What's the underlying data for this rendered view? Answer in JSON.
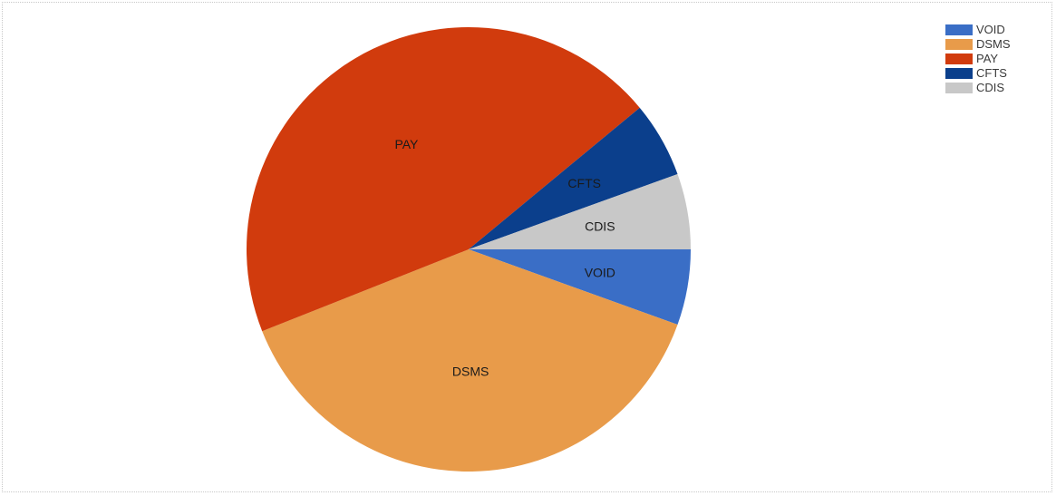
{
  "chart_data": {
    "type": "pie",
    "title": "",
    "slices": [
      {
        "label": "VOID",
        "value": 5.5,
        "color": "#3a6ec6"
      },
      {
        "label": "DSMS",
        "value": 38.5,
        "color": "#e89b4a"
      },
      {
        "label": "PAY",
        "value": 45,
        "color": "#d13b0d"
      },
      {
        "label": "CFTS",
        "value": 5.5,
        "color": "#0b3f8c"
      },
      {
        "label": "CDIS",
        "value": 5.5,
        "color": "#c8c8c8"
      }
    ],
    "legend_position": "top-right",
    "start_direction": "east",
    "direction": "clockwise"
  }
}
